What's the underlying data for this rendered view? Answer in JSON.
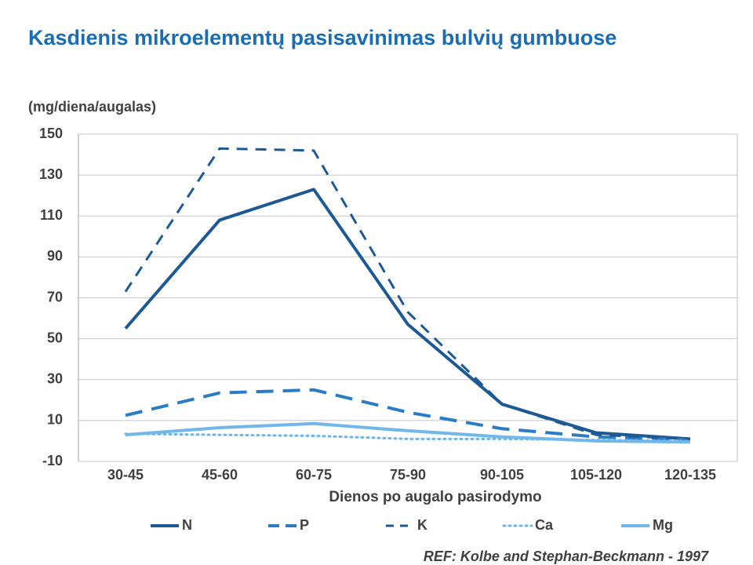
{
  "chart_data": {
    "type": "line",
    "title": "Kasdienis mikroelementų pasisavinimas bulvių gumbuose",
    "y_label": "(mg/diena/augalas)",
    "x_label": "Dienos po augalo pasirodymo",
    "annotation": "REF: Kolbe and Stephan-Beckmann - 1997",
    "categories": [
      "30-45",
      "45-60",
      "60-75",
      "75-90",
      "90-105",
      "105-120",
      "120-135"
    ],
    "series": [
      {
        "name": "N",
        "color": "#1d5a94",
        "dash": "solid",
        "values": [
          55,
          108,
          123,
          57,
          18,
          4,
          1
        ]
      },
      {
        "name": "P",
        "color": "#2a7cc4",
        "dash": "dashed",
        "values": [
          12.5,
          23.5,
          25,
          14,
          6,
          2,
          0.5
        ]
      },
      {
        "name": "K",
        "color": "#1d5a94",
        "dash": "dashed-short",
        "values": [
          73,
          143,
          142,
          63,
          18,
          3,
          1
        ]
      },
      {
        "name": "Ca",
        "color": "#6cb4ea",
        "dash": "dotted",
        "values": [
          3.5,
          3,
          2.5,
          1,
          1,
          0.5,
          0
        ]
      },
      {
        "name": "Mg",
        "color": "#72b7ea",
        "dash": "solid",
        "values": [
          3,
          6.5,
          8.5,
          5,
          2,
          0,
          -0.5
        ]
      }
    ],
    "ylim": [
      -10,
      150
    ],
    "yticks": [
      -10,
      10,
      30,
      50,
      70,
      90,
      110,
      130,
      150
    ],
    "grid": true,
    "legend": "bottom"
  }
}
